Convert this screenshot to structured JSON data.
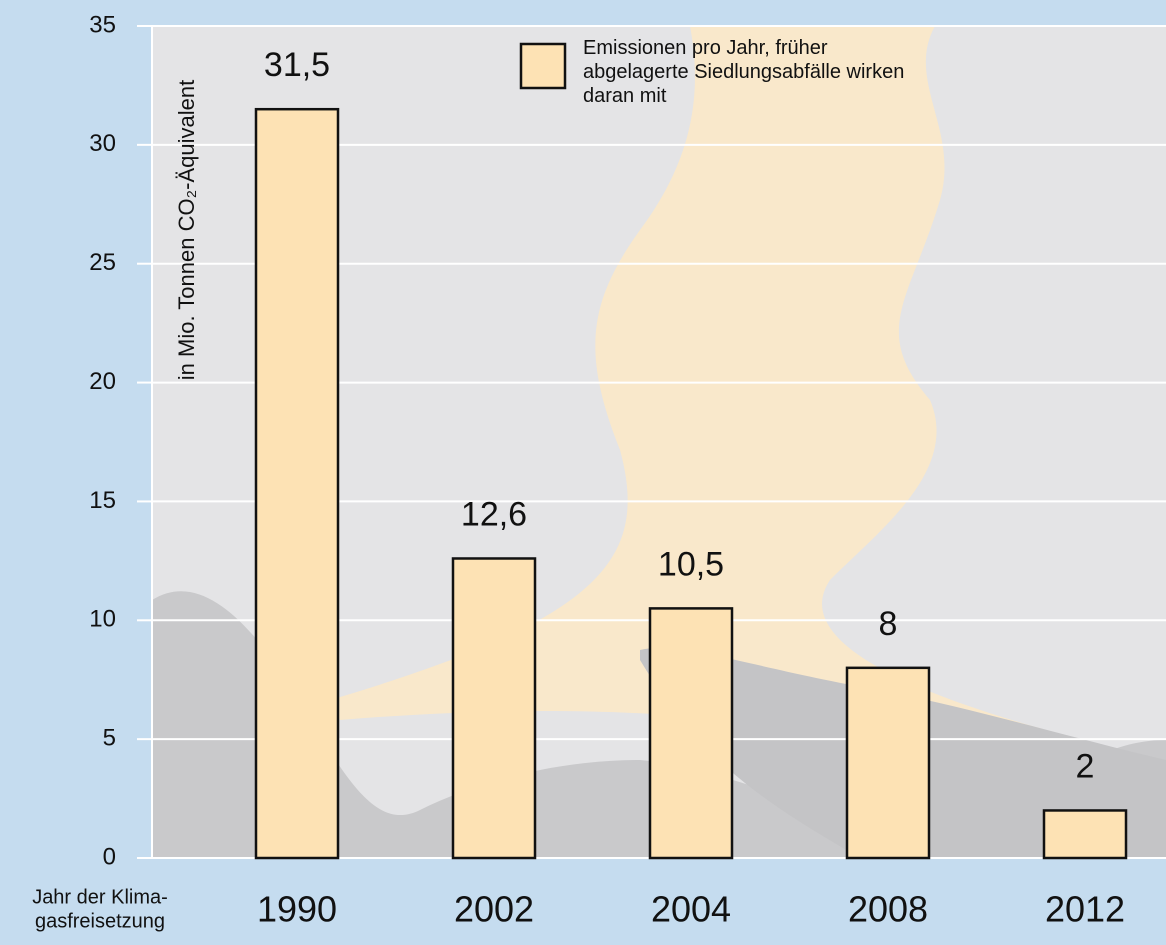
{
  "chart_data": {
    "type": "bar",
    "ylabel": "in Mio. Tonnen CO₂-Äquivalent",
    "xlabel": [
      "Jahr der Klima-",
      "gasfreisetzung"
    ],
    "categories": [
      "1990",
      "2002",
      "2004",
      "2008",
      "2012"
    ],
    "series": [
      {
        "name": "Emissionen pro Jahr, früher abgelagerte Siedlungsabfälle wirken daran mit",
        "color": "#fde2b4",
        "values": [
          31.5,
          12.6,
          10.5,
          8,
          2
        ],
        "value_labels": [
          "31,5",
          "12,6",
          "10,5",
          "8",
          "2"
        ]
      }
    ],
    "ylim": [
      0,
      35
    ],
    "yticks": [
      0,
      5,
      10,
      15,
      20,
      25,
      30,
      35
    ],
    "grid": true
  }
}
